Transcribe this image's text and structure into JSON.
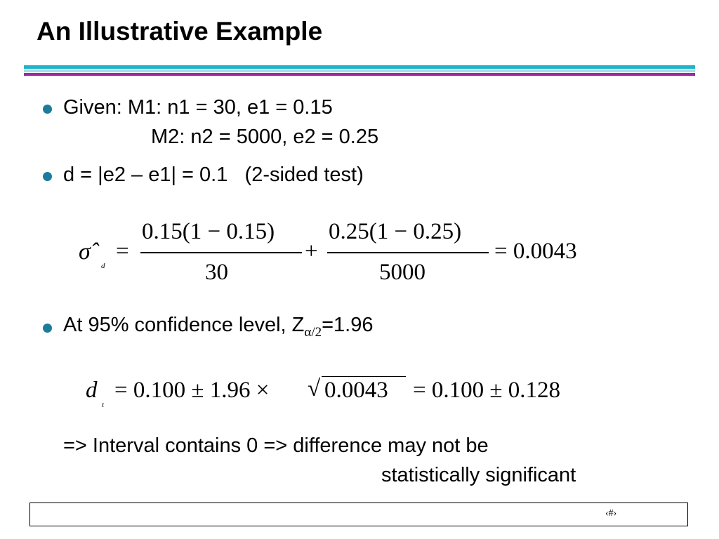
{
  "slide": {
    "title": "An Illustrative Example",
    "colors": {
      "bullet": "#1c7c9c",
      "rule_cyan": "#20b4cc",
      "rule_light": "#a8dde8",
      "rule_purple": "#9b2a9c"
    },
    "bullets": {
      "given_line1": "Given: M1: n1 = 30, e1 = 0.15",
      "given_line2": "M2: n2 = 5000, e2 = 0.25",
      "d_line": "d = |e2 – e1| = 0.1   (2-sided test)",
      "conf_prefix": "At 95% confidence level, Z",
      "conf_sub": "α/2",
      "conf_suffix": "=1.96"
    },
    "formula1": {
      "lhs": "σ̂",
      "lhs_sub": "d",
      "eq": "=",
      "num1": "0.15(1 − 0.15)",
      "den1": "30",
      "plus": "+",
      "num2": "0.25(1 − 0.25)",
      "den2": "5000",
      "result": "= 0.0043"
    },
    "formula2": {
      "lhs": "d",
      "lhs_sub": "t",
      "rhs_a": "= 0.100 ± 1.96 ×",
      "radical": "√",
      "radicand": "0.0043",
      "rhs_b": "= 0.100 ± 0.128"
    },
    "conclusion": {
      "line1": "=> Interval contains 0 => difference may not be",
      "line2": "statistically significant"
    },
    "footer": {
      "slide_number": "‹#›"
    }
  }
}
